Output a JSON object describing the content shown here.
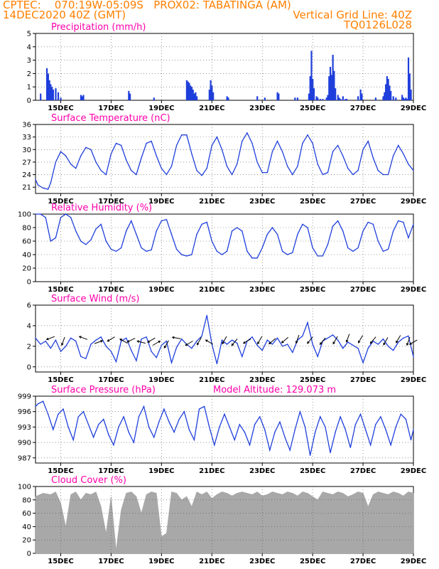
{
  "header": {
    "line1_left": "CPTEC:    070:19W-05:09S   PROX02: TABATINGA (AM)",
    "line2_left": "14DEC2020 40Z (GMT)",
    "line2_right": "Vertical Grid Line: 40Z",
    "line3_right": "TQ0126L028"
  },
  "colors": {
    "header": "#ff7f00",
    "title": "#ff00aa",
    "series": "#1f3fdc",
    "cloud": "#a8a8a8",
    "arrow": "#000000"
  },
  "x_axis": {
    "ticks": [
      "15DEC",
      "17DEC",
      "19DEC",
      "21DEC",
      "23DEC",
      "25DEC",
      "27DEC",
      "29DEC"
    ],
    "tick_days": [
      15,
      17,
      19,
      21,
      23,
      25,
      27,
      29
    ],
    "range_days": [
      14.0,
      29.0
    ]
  },
  "chart_data": [
    {
      "type": "bar",
      "title": "Precipitation (mm/h)",
      "ylim": [
        0,
        5
      ],
      "yticks": [
        0,
        1,
        2,
        3,
        4,
        5
      ],
      "x": [
        14.2,
        14.45,
        14.5,
        14.55,
        14.6,
        14.65,
        14.7,
        14.8,
        14.9,
        15.0,
        15.8,
        15.85,
        15.9,
        17.7,
        17.75,
        18.7,
        20.0,
        20.05,
        20.1,
        20.15,
        20.2,
        20.25,
        20.3,
        20.35,
        20.4,
        20.9,
        20.95,
        21.0,
        21.05,
        21.6,
        21.65,
        22.8,
        23.1,
        23.6,
        23.65,
        24.3,
        24.4,
        24.85,
        24.9,
        24.95,
        25.0,
        25.05,
        25.15,
        25.2,
        25.3,
        25.4,
        25.55,
        25.6,
        25.65,
        25.7,
        25.75,
        25.8,
        25.85,
        25.9,
        26.0,
        26.05,
        26.1,
        26.2,
        26.3,
        26.35,
        26.8,
        26.9,
        26.95,
        27.5,
        27.8,
        27.85,
        27.9,
        27.95,
        28.0,
        28.05,
        28.1,
        28.2,
        28.3,
        28.55,
        28.6,
        28.65,
        28.7,
        28.75,
        28.8,
        28.85,
        28.9
      ],
      "values": [
        0.5,
        2.4,
        2.0,
        1.5,
        1.2,
        1.0,
        0.8,
        0.9,
        0.6,
        0.2,
        0.4,
        0.3,
        0.4,
        0.7,
        0.5,
        0.2,
        1.5,
        1.4,
        1.3,
        1.1,
        1.0,
        0.8,
        0.5,
        0.6,
        0.3,
        0.8,
        1.5,
        1.1,
        0.6,
        0.3,
        0.2,
        0.3,
        0.2,
        0.6,
        0.5,
        0.2,
        0.2,
        0.5,
        1.8,
        3.7,
        1.6,
        0.9,
        0.3,
        0.2,
        0.1,
        0.1,
        0.2,
        0.4,
        1.8,
        2.5,
        1.9,
        3.4,
        2.2,
        0.9,
        0.4,
        0.2,
        0.1,
        0.3,
        0.1,
        0.1,
        0.3,
        0.8,
        0.5,
        0.2,
        0.3,
        0.6,
        1.2,
        1.8,
        1.6,
        1.1,
        0.7,
        0.3,
        0.2,
        0.4,
        0.2,
        0.1,
        0.2,
        0.1,
        3.2,
        2.0,
        0.8
      ]
    },
    {
      "type": "line",
      "title": "Surface Temperature (nC)",
      "ylim": [
        19.5,
        36
      ],
      "yticks": [
        21,
        24,
        27,
        30,
        33,
        36
      ],
      "x": [
        14.0,
        14.1,
        14.3,
        14.5,
        14.6,
        14.8,
        15.0,
        15.2,
        15.4,
        15.6,
        15.8,
        16.0,
        16.2,
        16.4,
        16.6,
        16.8,
        17.0,
        17.2,
        17.4,
        17.6,
        17.8,
        18.0,
        18.2,
        18.4,
        18.6,
        18.8,
        19.0,
        19.2,
        19.4,
        19.6,
        19.8,
        20.0,
        20.2,
        20.4,
        20.6,
        20.8,
        21.0,
        21.2,
        21.4,
        21.6,
        21.8,
        22.0,
        22.2,
        22.4,
        22.6,
        22.8,
        23.0,
        23.2,
        23.4,
        23.6,
        23.8,
        24.0,
        24.2,
        24.4,
        24.6,
        24.8,
        25.0,
        25.2,
        25.4,
        25.6,
        25.8,
        26.0,
        26.2,
        26.4,
        26.6,
        26.8,
        27.0,
        27.2,
        27.4,
        27.6,
        27.8,
        28.0,
        28.2,
        28.4,
        28.6,
        28.8,
        29.0
      ],
      "values": [
        22.8,
        21.5,
        20.8,
        20.5,
        22.0,
        27.0,
        29.5,
        28.5,
        26.5,
        25.5,
        28.5,
        30.5,
        30.0,
        27.0,
        25.0,
        24.0,
        29.0,
        31.5,
        31.0,
        27.5,
        25.0,
        24.0,
        28.0,
        31.5,
        32.0,
        28.5,
        25.5,
        24.0,
        26.0,
        31.0,
        33.5,
        33.5,
        29.0,
        25.0,
        23.8,
        25.5,
        31.0,
        33.0,
        30.0,
        26.0,
        24.0,
        26.5,
        32.0,
        34.0,
        31.5,
        27.0,
        24.5,
        24.5,
        29.5,
        32.0,
        29.5,
        26.0,
        24.0,
        26.0,
        31.5,
        33.5,
        31.5,
        26.5,
        24.0,
        24.5,
        29.5,
        31.0,
        28.5,
        25.5,
        24.0,
        25.0,
        30.0,
        32.0,
        28.0,
        25.0,
        24.0,
        24.0,
        28.5,
        31.0,
        29.0,
        26.5,
        25.0
      ]
    },
    {
      "type": "line",
      "title": "Relative Humidity (%)",
      "ylim": [
        0,
        100
      ],
      "yticks": [
        0,
        20,
        40,
        60,
        80,
        100
      ],
      "x": [
        14.0,
        14.2,
        14.4,
        14.6,
        14.8,
        15.0,
        15.2,
        15.4,
        15.6,
        15.8,
        16.0,
        16.2,
        16.4,
        16.6,
        16.8,
        17.0,
        17.2,
        17.4,
        17.6,
        17.8,
        18.0,
        18.2,
        18.4,
        18.6,
        18.8,
        19.0,
        19.2,
        19.4,
        19.6,
        19.8,
        20.0,
        20.2,
        20.4,
        20.6,
        20.8,
        21.0,
        21.2,
        21.4,
        21.6,
        21.8,
        22.0,
        22.2,
        22.4,
        22.6,
        22.8,
        23.0,
        23.2,
        23.4,
        23.6,
        23.8,
        24.0,
        24.2,
        24.4,
        24.6,
        24.8,
        25.0,
        25.2,
        25.4,
        25.6,
        25.8,
        26.0,
        26.2,
        26.4,
        26.6,
        26.8,
        27.0,
        27.2,
        27.4,
        27.6,
        27.8,
        28.0,
        28.2,
        28.4,
        28.6,
        28.8,
        29.0
      ],
      "values": [
        100,
        100,
        95,
        60,
        65,
        95,
        100,
        95,
        75,
        60,
        55,
        62,
        78,
        85,
        60,
        48,
        45,
        50,
        75,
        90,
        70,
        50,
        45,
        47,
        75,
        90,
        92,
        70,
        48,
        40,
        38,
        40,
        70,
        85,
        88,
        60,
        45,
        40,
        45,
        75,
        80,
        75,
        45,
        35,
        35,
        50,
        70,
        80,
        70,
        45,
        40,
        43,
        70,
        85,
        80,
        50,
        38,
        38,
        55,
        82,
        90,
        75,
        50,
        45,
        50,
        75,
        88,
        85,
        60,
        45,
        48,
        75,
        90,
        88,
        65,
        85
      ]
    },
    {
      "type": "line",
      "title": "Surface Wind (m/s)",
      "ylim": [
        -0.5,
        6
      ],
      "yticks": [
        0,
        2,
        4,
        6
      ],
      "x": [
        14.0,
        14.2,
        14.4,
        14.6,
        14.8,
        15.0,
        15.2,
        15.4,
        15.6,
        15.8,
        16.0,
        16.2,
        16.4,
        16.6,
        16.8,
        17.0,
        17.2,
        17.4,
        17.6,
        17.8,
        18.0,
        18.2,
        18.4,
        18.6,
        18.8,
        19.0,
        19.2,
        19.4,
        19.6,
        19.8,
        20.0,
        20.2,
        20.4,
        20.6,
        20.8,
        21.0,
        21.2,
        21.4,
        21.6,
        21.8,
        22.0,
        22.2,
        22.4,
        22.6,
        22.8,
        23.0,
        23.2,
        23.4,
        23.6,
        23.8,
        24.0,
        24.2,
        24.4,
        24.6,
        24.8,
        25.0,
        25.2,
        25.4,
        25.6,
        25.8,
        26.0,
        26.2,
        26.4,
        26.6,
        26.8,
        27.0,
        27.2,
        27.4,
        27.6,
        27.8,
        28.0,
        28.2,
        28.4,
        28.6,
        28.8,
        29.0
      ],
      "values": [
        2.8,
        2.2,
        2.5,
        1.8,
        2.6,
        1.5,
        2.0,
        2.8,
        2.5,
        1.0,
        0.8,
        2.2,
        2.6,
        2.9,
        2.0,
        1.5,
        0.5,
        2.5,
        2.8,
        1.6,
        0.6,
        2.7,
        2.9,
        1.5,
        0.9,
        2.1,
        2.5,
        0.4,
        1.9,
        2.7,
        2.2,
        1.8,
        2.5,
        3.0,
        5.0,
        2.2,
        0.3,
        2.6,
        2.2,
        2.6,
        2.3,
        1.0,
        2.5,
        2.9,
        2.1,
        1.6,
        2.6,
        2.2,
        2.8,
        2.0,
        2.2,
        1.4,
        2.6,
        3.0,
        4.3,
        2.2,
        1.0,
        2.5,
        2.8,
        3.1,
        2.6,
        1.8,
        2.4,
        2.1,
        1.8,
        0.4,
        1.8,
        2.5,
        2.2,
        2.7,
        2.0,
        1.6,
        2.4,
        2.8,
        3.0,
        1.0
      ],
      "arrows": {
        "x": [
          14.6,
          15.1,
          15.9,
          16.5,
          17.0,
          17.5,
          17.8,
          18.2,
          18.6,
          18.8,
          19.2,
          19.6,
          20.1,
          20.5,
          20.9,
          21.5,
          21.9,
          22.4,
          22.9,
          23.4,
          23.9,
          24.4,
          24.9,
          25.4,
          25.9,
          26.4,
          26.9,
          27.4,
          27.9,
          28.4,
          28.8,
          29.0
        ],
        "y": [
          2.8,
          2.5,
          2.8,
          2.4,
          2.7,
          2.5,
          2.6,
          2.4,
          2.6,
          2.3,
          2.2,
          2.8,
          2.3,
          2.5,
          2.4,
          2.6,
          2.4,
          2.5,
          2.6,
          2.5,
          2.6,
          2.7,
          2.6,
          2.5,
          2.6,
          2.8,
          2.7,
          2.6,
          2.5,
          2.7,
          2.5,
          2.4
        ],
        "dir_deg": [
          200,
          250,
          160,
          20,
          210,
          150,
          205,
          165,
          210,
          30,
          240,
          170,
          210,
          240,
          150,
          240,
          230,
          210,
          240,
          220,
          220,
          250,
          230,
          230,
          240,
          250,
          240,
          230,
          240,
          240,
          250,
          210
        ]
      }
    },
    {
      "type": "line",
      "title": "Surface Pressure (hPa)",
      "ylim": [
        986,
        999
      ],
      "yticks": [
        987,
        990,
        993,
        996,
        999
      ],
      "annotation": "Model Altitude: 129.073 m",
      "x": [
        14.0,
        14.1,
        14.3,
        14.5,
        14.7,
        14.9,
        15.1,
        15.3,
        15.5,
        15.7,
        15.9,
        16.1,
        16.3,
        16.5,
        16.7,
        16.9,
        17.1,
        17.3,
        17.5,
        17.7,
        17.9,
        18.1,
        18.3,
        18.5,
        18.7,
        18.9,
        19.1,
        19.3,
        19.5,
        19.7,
        19.9,
        20.1,
        20.3,
        20.5,
        20.7,
        20.9,
        21.1,
        21.3,
        21.5,
        21.7,
        21.9,
        22.1,
        22.3,
        22.5,
        22.7,
        22.9,
        23.1,
        23.3,
        23.5,
        23.7,
        23.9,
        24.1,
        24.3,
        24.5,
        24.7,
        24.9,
        25.1,
        25.3,
        25.5,
        25.7,
        25.9,
        26.1,
        26.3,
        26.5,
        26.7,
        26.9,
        27.1,
        27.3,
        27.5,
        27.7,
        27.9,
        28.1,
        28.3,
        28.5,
        28.7,
        28.9,
        29.0
      ],
      "values": [
        997.0,
        997.5,
        998.0,
        995.5,
        992.5,
        995.5,
        996.5,
        993.0,
        990.5,
        995.0,
        996.0,
        993.5,
        991.0,
        993.5,
        994.5,
        991.5,
        989.5,
        993.0,
        995.0,
        992.0,
        990.0,
        995.0,
        997.0,
        993.0,
        991.0,
        994.0,
        996.5,
        994.0,
        992.0,
        994.5,
        996.0,
        992.5,
        990.5,
        996.5,
        997.0,
        993.0,
        989.5,
        993.0,
        995.5,
        993.0,
        990.5,
        993.5,
        992.0,
        989.5,
        993.5,
        995.0,
        992.5,
        988.5,
        992.0,
        994.0,
        991.0,
        988.5,
        992.5,
        996.0,
        993.0,
        987.5,
        992.0,
        995.0,
        993.0,
        988.0,
        992.0,
        995.0,
        992.5,
        989.0,
        993.5,
        995.5,
        992.5,
        989.5,
        993.5,
        995.0,
        992.5,
        989.5,
        993.0,
        995.5,
        994.5,
        990.5,
        992.5
      ]
    },
    {
      "type": "area",
      "title": "Cloud Cover (%)",
      "ylim": [
        0,
        100
      ],
      "yticks": [
        0,
        20,
        40,
        60,
        80,
        100
      ],
      "x": [
        14.0,
        14.3,
        14.6,
        14.8,
        15.0,
        15.2,
        15.4,
        15.6,
        15.8,
        16.0,
        16.2,
        16.4,
        16.6,
        16.8,
        17.0,
        17.2,
        17.4,
        17.6,
        17.8,
        18.0,
        18.2,
        18.4,
        18.6,
        18.8,
        19.0,
        19.2,
        19.4,
        19.6,
        19.8,
        20.0,
        20.2,
        20.4,
        20.6,
        20.8,
        21.0,
        21.2,
        21.4,
        21.6,
        21.8,
        22.0,
        22.2,
        22.4,
        22.6,
        22.8,
        23.0,
        23.2,
        23.4,
        23.6,
        23.8,
        24.0,
        24.2,
        24.4,
        24.6,
        24.8,
        25.0,
        25.2,
        25.4,
        25.6,
        25.8,
        26.0,
        26.2,
        26.4,
        26.6,
        26.8,
        27.0,
        27.2,
        27.4,
        27.6,
        27.8,
        28.0,
        28.2,
        28.4,
        28.6,
        28.8,
        29.0
      ],
      "values": [
        85,
        90,
        88,
        92,
        75,
        40,
        88,
        92,
        80,
        90,
        88,
        92,
        70,
        30,
        85,
        5,
        65,
        90,
        92,
        85,
        60,
        88,
        92,
        90,
        25,
        30,
        92,
        90,
        80,
        85,
        70,
        92,
        88,
        92,
        82,
        88,
        92,
        90,
        86,
        90,
        92,
        90,
        88,
        92,
        86,
        88,
        92,
        90,
        88,
        92,
        90,
        86,
        92,
        90,
        85,
        80,
        92,
        90,
        88,
        92,
        90,
        85,
        88,
        92,
        90,
        70,
        88,
        92,
        90,
        88,
        92,
        90,
        86,
        92,
        90
      ]
    }
  ]
}
